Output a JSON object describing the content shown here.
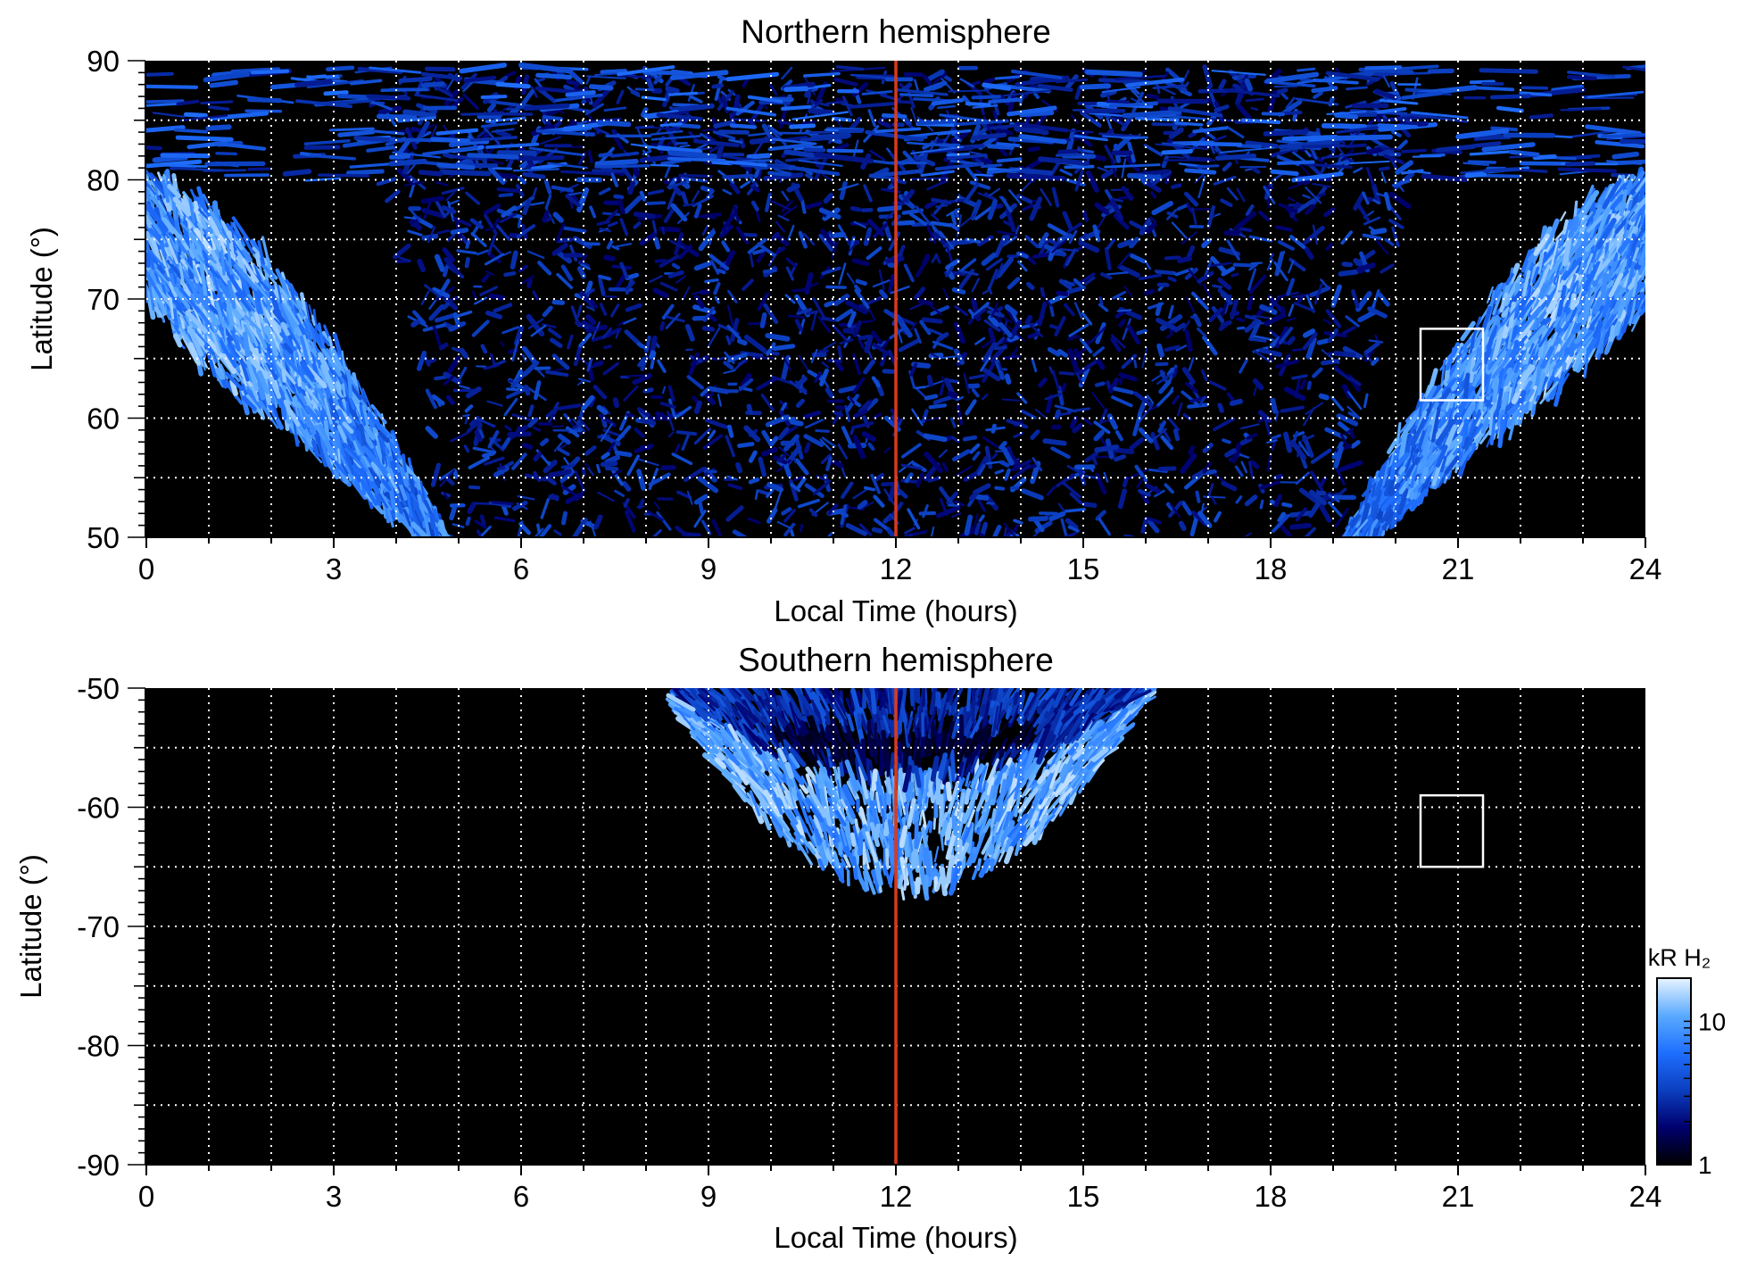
{
  "chart_data": [
    {
      "type": "heatmap",
      "title": "Northern hemisphere",
      "xlabel": "Local Time (hours)",
      "ylabel": "Latitude (°)",
      "xlim": [
        0,
        24
      ],
      "ylim": [
        50,
        90
      ],
      "x_ticks": [
        0,
        3,
        6,
        9,
        12,
        15,
        18,
        21,
        24
      ],
      "y_ticks": [
        50,
        60,
        70,
        80,
        90
      ],
      "grid": true,
      "grid_x_every": 1,
      "grid_y_every": 5,
      "noon_line": {
        "x": 12,
        "color": "#d93a1c"
      },
      "highlight_box": {
        "x": [
          20.4,
          21.4
        ],
        "y": [
          61.5,
          67.5
        ],
        "color": "#ffffff"
      },
      "emission_features": [
        {
          "name": "main_oval",
          "region": "dawn",
          "x": [
            0,
            5.1
          ],
          "y_upper_at_midnight": 80,
          "y_lower_at_midnight": 70,
          "crosses_50_between": [
            4.0,
            5.1
          ]
        },
        {
          "name": "main_oval",
          "region": "dusk",
          "x": [
            18.9,
            24
          ],
          "y_upper_at_midnight": 80,
          "y_lower_at_midnight": 70,
          "crosses_50_between": [
            18.9,
            20.0
          ]
        },
        {
          "name": "polar_cap_diffuse",
          "x": [
            4,
            20
          ],
          "y": [
            50,
            90
          ]
        }
      ]
    },
    {
      "type": "heatmap",
      "title": "Southern hemisphere",
      "xlabel": "Local Time (hours)",
      "ylabel": "Latitude (°)",
      "xlim": [
        0,
        24
      ],
      "ylim": [
        -90,
        -50
      ],
      "x_ticks": [
        0,
        3,
        6,
        9,
        12,
        15,
        18,
        21,
        24
      ],
      "y_ticks": [
        -90,
        -80,
        -70,
        -60,
        -50
      ],
      "grid": true,
      "grid_x_every": 1,
      "grid_y_every": 5,
      "noon_line": {
        "x": 12,
        "color": "#d93a1c"
      },
      "highlight_box": {
        "x": [
          20.4,
          21.4
        ],
        "y": [
          -65,
          -59
        ],
        "color": "#ffffff"
      },
      "emission_features": [
        {
          "name": "dayside_arc",
          "x": [
            8.5,
            16
          ],
          "y_edge_at_noon": -67,
          "y_top": -50
        }
      ]
    }
  ],
  "colorbar": {
    "label": "kR H₂",
    "scale": "log",
    "range": [
      1,
      20
    ],
    "ticks": [
      1,
      10
    ],
    "colors": [
      "#000000",
      "#00006e",
      "#0b3fbf",
      "#1f6fff",
      "#5aaaff",
      "#e8f4ff"
    ]
  }
}
